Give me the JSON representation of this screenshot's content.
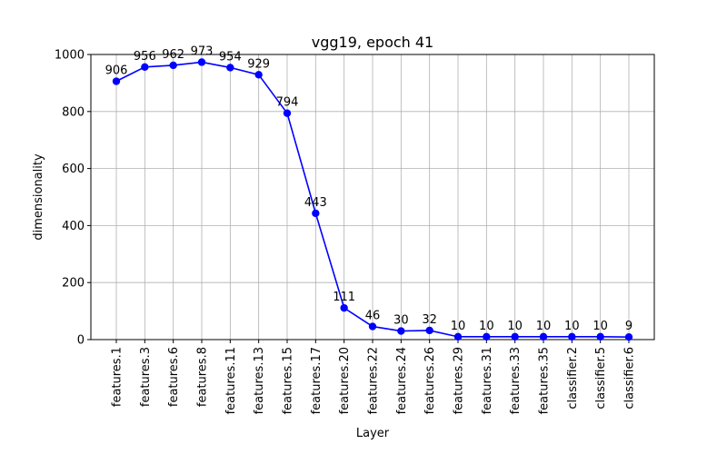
{
  "chart_data": {
    "type": "line",
    "title": "vgg19, epoch 41",
    "xlabel": "Layer",
    "ylabel": "dimensionality",
    "ylim": [
      0,
      1000
    ],
    "yticks": [
      0,
      200,
      400,
      600,
      800,
      1000
    ],
    "grid": true,
    "categories": [
      "features.1",
      "features.3",
      "features.6",
      "features.8",
      "features.11",
      "features.13",
      "features.15",
      "features.17",
      "features.20",
      "features.22",
      "features.24",
      "features.26",
      "features.29",
      "features.31",
      "features.33",
      "features.35",
      "classifier.2",
      "classifier.5",
      "classifier.6"
    ],
    "series": [
      {
        "color": "#0000ff",
        "marker": "circle",
        "values": [
          906,
          956,
          962,
          973,
          954,
          929,
          794,
          443,
          111,
          46,
          30,
          32,
          10,
          10,
          10,
          10,
          10,
          10,
          9
        ]
      }
    ]
  }
}
